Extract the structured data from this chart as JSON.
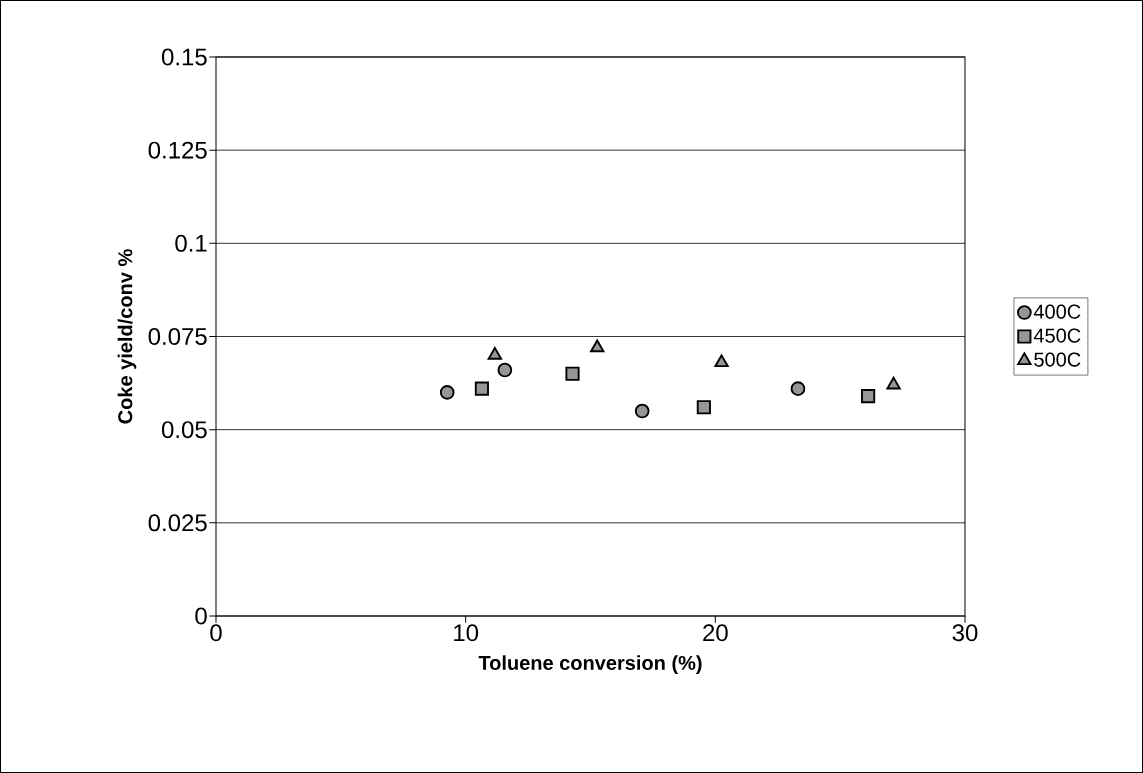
{
  "chart_data": {
    "type": "scatter",
    "xlabel": "Toluene conversion (%)",
    "ylabel": "Coke yield/conv %",
    "xlim": [
      0,
      30
    ],
    "xticks": [
      0,
      10,
      20,
      30
    ],
    "ylim": [
      0,
      0.15
    ],
    "yticks": [
      0,
      0.025,
      0.05,
      0.075,
      0.1,
      0.125,
      0.15
    ],
    "grid": "y",
    "legend": "right",
    "series": [
      {
        "name": "400C",
        "color": "#969696",
        "marker": "circle",
        "x": [
          9.26,
          11.57,
          17.07,
          23.31
        ],
        "values": [
          0.06,
          0.066,
          0.055,
          0.061
        ]
      },
      {
        "name": "450C",
        "color": "#969696",
        "marker": "square",
        "x": [
          10.65,
          14.28,
          19.54,
          26.12
        ],
        "values": [
          0.061,
          0.065,
          0.056,
          0.059
        ]
      },
      {
        "name": "500C",
        "color": "#969696",
        "marker": "triangle",
        "x": [
          11.17,
          15.27,
          20.25,
          27.14
        ],
        "values": [
          0.07,
          0.072,
          0.068,
          0.062
        ]
      }
    ]
  }
}
